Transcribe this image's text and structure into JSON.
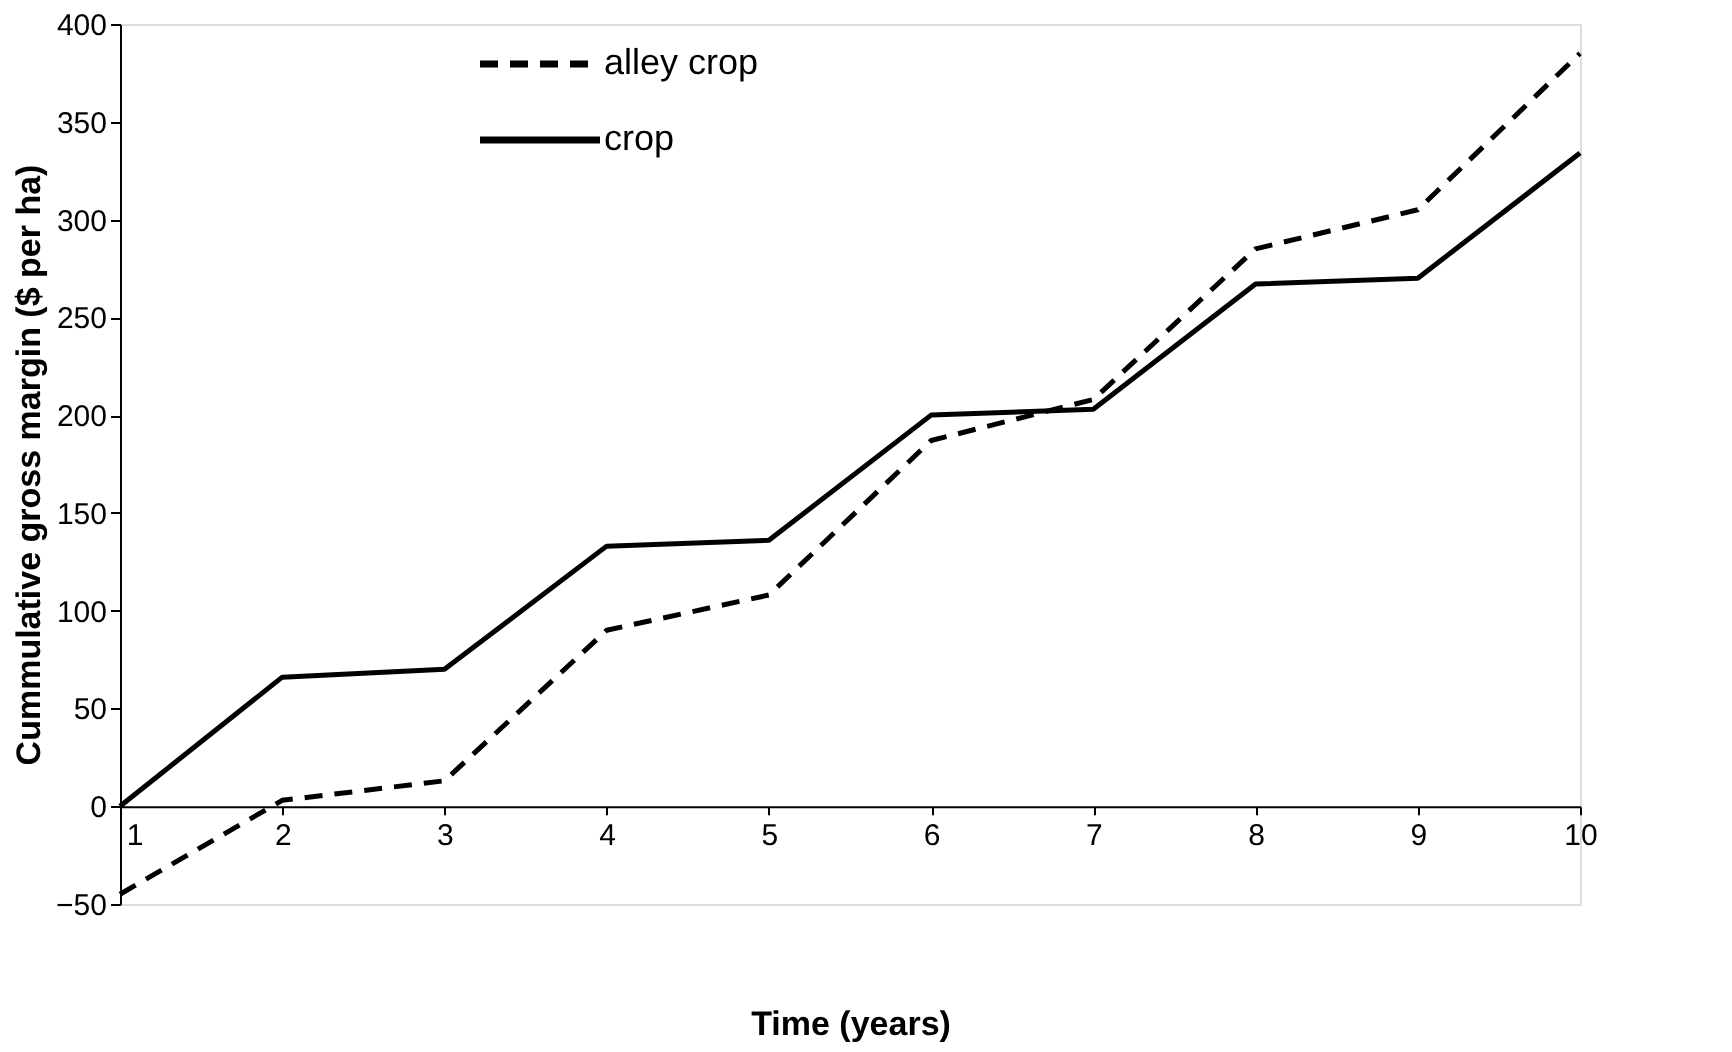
{
  "chart_data": {
    "type": "line",
    "xlabel": "Time (years)",
    "ylabel": "Cummulative gross margin ($ per ha)",
    "x": [
      1,
      2,
      3,
      4,
      5,
      6,
      7,
      8,
      9,
      10
    ],
    "series": [
      {
        "name": "alley crop",
        "color": "#000000",
        "line_style": "dashed",
        "values": [
          -45,
          3,
          13,
          90,
          108,
          187,
          208,
          285,
          305,
          385
        ]
      },
      {
        "name": "crop",
        "color": "#000000",
        "line_style": "solid",
        "values": [
          0,
          66,
          70,
          133,
          136,
          200,
          203,
          267,
          270,
          334
        ]
      }
    ],
    "xlim": [
      1,
      10
    ],
    "xticks": [
      1,
      2,
      3,
      4,
      5,
      6,
      7,
      8,
      9,
      10
    ],
    "ylim": [
      -50,
      400
    ],
    "yticks": [
      -50,
      0,
      50,
      100,
      150,
      200,
      250,
      300,
      350,
      400
    ],
    "grid": false,
    "legend": "top left",
    "marker": "none"
  }
}
